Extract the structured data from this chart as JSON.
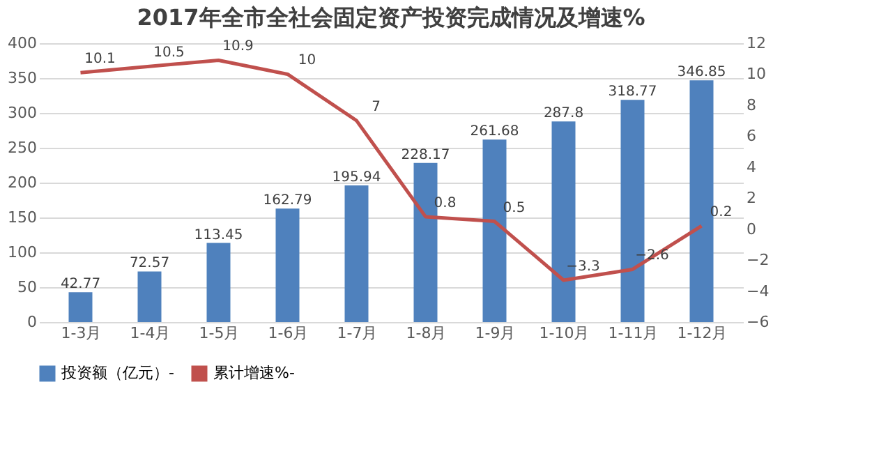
{
  "chart_data": {
    "type": "bar",
    "title": "2017年全市全社会固定资产投资完成情况及增速%",
    "categories": [
      "1-3月",
      "1-4月",
      "1-5月",
      "1-6月",
      "1-7月",
      "1-8月",
      "1-9月",
      "1-10月",
      "1-11月",
      "1-12月"
    ],
    "series": [
      {
        "name": "投资额（亿元）-",
        "color": "#4f81bd",
        "values": [
          42.77,
          72.57,
          113.45,
          162.79,
          195.94,
          228.17,
          261.68,
          287.8,
          318.77,
          346.85
        ]
      },
      {
        "name": "累计增速%-",
        "color": "#c0504d",
        "type": "line",
        "axis": "y2",
        "values": [
          10.1,
          10.5,
          10.9,
          10,
          7,
          0.8,
          0.5,
          -3.3,
          -2.6,
          0.2
        ]
      }
    ],
    "ylim": [
      0,
      400
    ],
    "yticks": [
      0,
      50,
      100,
      150,
      200,
      250,
      300,
      350,
      400
    ],
    "y2lim": [
      -6,
      12
    ],
    "y2ticks": [
      -6,
      -4,
      -2,
      0,
      2,
      4,
      6,
      8,
      10,
      12
    ],
    "grid": "y",
    "legend": "bottom",
    "data_labels": true,
    "marker": "none",
    "line_style": "solid"
  }
}
